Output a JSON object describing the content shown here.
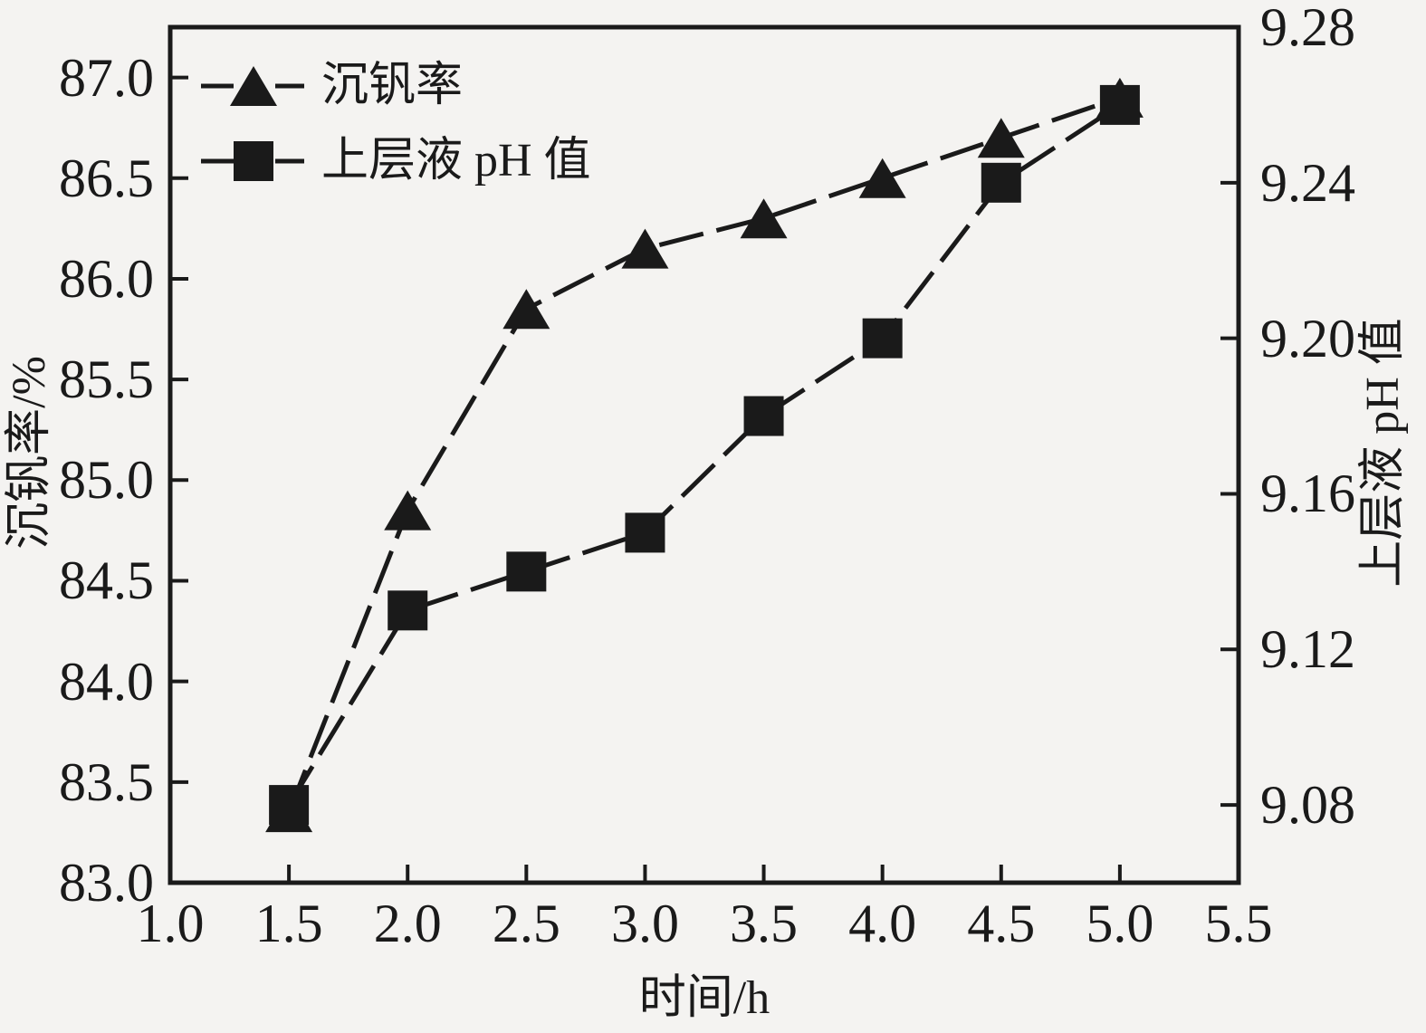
{
  "figure": {
    "background": "#f4f3f1",
    "ink": "#1a1a1a"
  },
  "chart_data": {
    "type": "line",
    "x": [
      1.5,
      2.0,
      2.5,
      3.0,
      3.5,
      4.0,
      4.5,
      5.0
    ],
    "series": [
      {
        "name": "沉钒率",
        "axis": "left",
        "marker": "triangle-up",
        "line_style": "dashed",
        "color": "#1a1a1a",
        "values": [
          83.35,
          84.85,
          85.85,
          86.15,
          86.3,
          86.5,
          86.7,
          86.9
        ]
      },
      {
        "name": "上层液 pH 值",
        "axis": "right",
        "marker": "square",
        "line_style": "dashed",
        "color": "#1a1a1a",
        "values": [
          9.08,
          9.13,
          9.14,
          9.15,
          9.18,
          9.2,
          9.24,
          9.26
        ]
      }
    ],
    "xlabel": "时间/h",
    "ylabel_left": "沉钒率/%",
    "ylabel_right": "上层液 pH 值",
    "xlim": [
      1.0,
      5.5
    ],
    "ylim_left": [
      83.0,
      87.25
    ],
    "ylim_right": [
      9.06,
      9.28
    ],
    "xticks": [
      "1.0",
      "1.5",
      "2.0",
      "2.5",
      "3.0",
      "3.5",
      "4.0",
      "4.5",
      "5.0",
      "5.5"
    ],
    "yticks_left": [
      "83.0",
      "83.5",
      "84.0",
      "84.5",
      "85.0",
      "85.5",
      "86.0",
      "86.5",
      "87.0"
    ],
    "yticks_right": [
      "9.08",
      "9.12",
      "9.16",
      "9.20",
      "9.24",
      "9.28"
    ],
    "grid": false,
    "legend_position": "top-left"
  }
}
